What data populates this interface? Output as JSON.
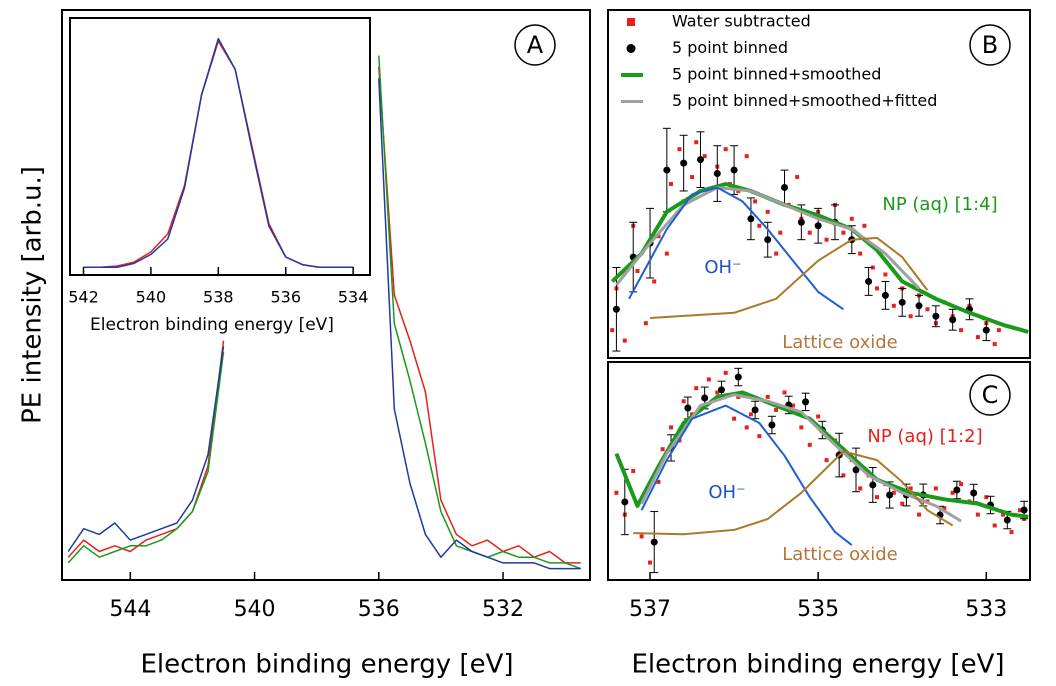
{
  "chart_data": [
    {
      "type": "line",
      "panel": "A",
      "xlabel": "Electron binding energy [eV]",
      "ylabel": "PE intensity [arb.u.]",
      "xlim": [
        546.2,
        529.2
      ],
      "xticks": [
        544,
        540,
        536,
        532
      ],
      "ylim": [
        0,
        100
      ],
      "x": [
        546,
        545.5,
        545,
        544.5,
        544,
        543.5,
        543,
        542.5,
        542,
        541.5,
        541,
        540.5,
        540,
        539.5,
        539,
        538.5,
        538,
        537.5,
        537,
        536.5,
        536,
        535.5,
        535,
        534.5,
        534,
        533.5,
        533,
        532.5,
        532,
        531.5,
        531,
        530.5,
        530,
        529.5
      ],
      "series": [
        {
          "color": "#e8201c",
          "values": [
            4,
            7,
            5,
            6,
            5,
            7,
            8,
            9,
            12,
            20,
            42,
            null,
            null,
            null,
            null,
            null,
            null,
            null,
            null,
            null,
            90,
            50,
            42,
            33,
            14,
            8,
            6,
            7,
            5,
            6,
            4,
            5,
            3,
            3
          ]
        },
        {
          "color": "#1a9a1a",
          "values": [
            3,
            6,
            4,
            5,
            6,
            6,
            7,
            9,
            12,
            19,
            40,
            null,
            null,
            null,
            null,
            null,
            null,
            null,
            null,
            null,
            92,
            45,
            35,
            24,
            12,
            6,
            5,
            4,
            5,
            4,
            4,
            3,
            3,
            2
          ]
        },
        {
          "color": "#1f3aa0",
          "values": [
            5,
            9,
            8,
            10,
            7,
            8,
            9,
            10,
            14,
            22,
            41,
            null,
            null,
            null,
            null,
            null,
            null,
            null,
            null,
            null,
            88,
            30,
            17,
            8,
            4,
            7,
            5,
            4,
            3,
            3,
            3,
            2,
            2,
            2
          ]
        }
      ]
    },
    {
      "type": "line",
      "xlabel": "Electron binding energy [eV]",
      "xlim": [
        542.4,
        533.5
      ],
      "xticks": [
        542,
        540,
        538,
        536,
        534
      ],
      "ylim": [
        0,
        100
      ],
      "x": [
        542,
        541.5,
        541,
        540.5,
        540,
        539.5,
        539,
        538.5,
        538,
        537.5,
        537,
        536.5,
        536,
        535.5,
        535,
        534.5,
        534
      ],
      "series": [
        {
          "color": "#e8201c",
          "values": [
            3,
            3,
            3.5,
            5,
            9,
            16,
            35,
            70,
            91,
            80,
            50,
            20,
            7,
            4,
            3,
            3,
            3
          ]
        },
        {
          "color": "#1f3aa0",
          "values": [
            3,
            3,
            3,
            4.5,
            8,
            14,
            34,
            70,
            92,
            80,
            49,
            19,
            7,
            4,
            3,
            3,
            3
          ]
        }
      ]
    },
    {
      "type": "scatter",
      "panel": "B",
      "xlim": [
        537.5,
        532.48
      ],
      "ylim": [
        0,
        100
      ],
      "annotations": [
        {
          "text": "NP (aq) [1:4]",
          "color": "#1a9a1a"
        },
        {
          "text": "OH⁻",
          "color": "#1f4fd0"
        },
        {
          "text": "Lattice oxide",
          "color": "#b8743a"
        }
      ],
      "series": [
        {
          "name": "Water subtracted",
          "color": "#e8201c",
          "marker": "square",
          "x": [
            537.45,
            537.4,
            537.3,
            537.2,
            537.15,
            537.05,
            536.95,
            536.9,
            536.8,
            536.75,
            536.65,
            536.6,
            536.5,
            536.45,
            536.35,
            536.3,
            536.2,
            536.1,
            536.05,
            535.95,
            535.85,
            535.75,
            535.7,
            535.6,
            535.5,
            535.45,
            535.35,
            535.25,
            535.2,
            535.1,
            535.0,
            534.9,
            534.8,
            534.7,
            534.6,
            534.5,
            534.45,
            534.35,
            534.3,
            534.2,
            534.1,
            534.0,
            533.9,
            533.8,
            533.7,
            533.6,
            533.5,
            533.4,
            533.3,
            533.2,
            533.1,
            533.0,
            532.9,
            532.85
          ],
          "values": [
            8,
            20,
            5,
            38,
            25,
            10,
            22,
            35,
            30,
            50,
            60,
            45,
            52,
            62,
            58,
            48,
            55,
            60,
            50,
            48,
            58,
            45,
            38,
            42,
            30,
            36,
            44,
            52,
            40,
            36,
            42,
            34,
            44,
            36,
            40,
            30,
            38,
            26,
            20,
            24,
            15,
            20,
            12,
            18,
            14,
            10,
            16,
            12,
            8,
            15,
            6,
            10,
            4,
            8
          ]
        },
        {
          "name": "5 point binned",
          "color": "#000000",
          "marker": "circle",
          "x": [
            537.4,
            537.2,
            537.0,
            536.8,
            536.6,
            536.4,
            536.2,
            536.0,
            535.8,
            535.6,
            535.4,
            535.2,
            535.0,
            534.8,
            534.6,
            534.4,
            534.2,
            534.0,
            533.8,
            533.6,
            533.4,
            533.2,
            533.0
          ],
          "values": [
            14,
            29,
            33,
            54,
            56,
            57,
            53,
            54,
            40,
            34,
            49,
            39,
            38,
            39,
            34,
            22,
            18,
            16,
            15,
            12,
            11,
            14,
            8
          ],
          "errors": [
            12,
            10,
            10,
            12,
            8,
            8,
            8,
            7,
            6,
            5,
            5,
            5,
            5,
            5,
            4,
            4,
            4,
            4,
            3,
            3,
            3,
            3,
            3
          ]
        },
        {
          "name": "5 point binned+smoothed",
          "color": "#1a9a1a",
          "width": 4,
          "x": [
            537.45,
            537.1,
            536.8,
            536.4,
            536.1,
            535.8,
            535.4,
            535.0,
            534.6,
            534.3,
            534.0,
            533.6,
            533.2,
            532.8,
            532.5
          ],
          "values": [
            22,
            30,
            42,
            48,
            50,
            48,
            44,
            41,
            37,
            31,
            22,
            17,
            13,
            9.5,
            7.5
          ]
        },
        {
          "name": "5 point binned+smoothed+fitted",
          "color": "#a0a0a0",
          "width": 3,
          "x": [
            537.4,
            537.0,
            536.6,
            536.2,
            535.8,
            535.4,
            535.0,
            534.6,
            534.2,
            533.8
          ],
          "values": [
            21,
            33,
            44,
            49,
            48,
            44,
            40,
            37,
            30,
            20
          ]
        },
        {
          "color": "#1f5fd0",
          "width": 2,
          "x": [
            537.25,
            536.8,
            536.5,
            536.2,
            535.9,
            535.6,
            535.3,
            535.0,
            534.7
          ],
          "values": [
            17,
            37,
            47,
            49,
            45,
            37,
            28,
            19,
            14
          ]
        },
        {
          "color": "#a87a2a",
          "width": 2,
          "x": [
            537.0,
            536.0,
            535.5,
            535.0,
            534.6,
            534.3,
            534.0,
            533.7
          ],
          "values": [
            11.5,
            13,
            17,
            28,
            34,
            34.5,
            29,
            19.5
          ]
        }
      ]
    },
    {
      "type": "scatter",
      "panel": "C",
      "xlabel": "Electron binding energy [eV]",
      "xlim": [
        537.5,
        532.48
      ],
      "xticks": [
        537,
        535,
        533
      ],
      "ylim": [
        0,
        100
      ],
      "annotations": [
        {
          "text": "NP (aq) [1:2]",
          "color": "#e8201c"
        },
        {
          "text": "OH⁻",
          "color": "#1f4fd0"
        },
        {
          "text": "Lattice oxide",
          "color": "#b8743a"
        }
      ],
      "series": [
        {
          "color": "#e8201c",
          "marker": "square",
          "x": [
            537.4,
            537.3,
            537.2,
            537.1,
            537.0,
            536.9,
            536.85,
            536.75,
            536.65,
            536.6,
            536.5,
            536.45,
            536.35,
            536.3,
            536.2,
            536.1,
            536.0,
            535.95,
            535.85,
            535.8,
            535.7,
            535.6,
            535.5,
            535.4,
            535.3,
            535.2,
            535.1,
            535.0,
            534.9,
            534.8,
            534.7,
            534.6,
            534.5,
            534.4,
            534.3,
            534.2,
            534.1,
            534.0,
            533.9,
            533.8,
            533.7,
            533.6,
            533.5,
            533.4,
            533.3,
            533.2,
            533.1,
            533.0,
            532.9,
            532.8,
            532.7,
            532.6,
            532.55
          ],
          "values": [
            40,
            30,
            50,
            20,
            8,
            45,
            60,
            70,
            64,
            82,
            76,
            88,
            80,
            92,
            86,
            95,
            74,
            84,
            70,
            76,
            66,
            84,
            78,
            86,
            80,
            70,
            62,
            75,
            55,
            64,
            48,
            55,
            42,
            48,
            38,
            44,
            40,
            35,
            42,
            30,
            36,
            42,
            33,
            40,
            44,
            36,
            30,
            38,
            25,
            30,
            22,
            32,
            28
          ]
        },
        {
          "color": "#000000",
          "marker": "circle",
          "x": [
            537.3,
            536.95,
            536.75,
            536.55,
            536.35,
            536.15,
            535.95,
            535.75,
            535.55,
            535.35,
            535.15,
            534.95,
            534.75,
            534.55,
            534.35,
            534.15,
            533.95,
            533.75,
            533.55,
            533.35,
            533.15,
            532.95,
            532.75,
            532.55
          ],
          "values": [
            35.8,
            17.4,
            60.6,
            78.9,
            83.5,
            87.2,
            93.1,
            78,
            71.1,
            80.3,
            81.7,
            68.8,
            57.3,
            50.5,
            43.6,
            39,
            39,
            39,
            29.8,
            41.3,
            39.9,
            34.4,
            27.5,
            32.1
          ],
          "errors": [
            15,
            14,
            6,
            5,
            5,
            4,
            4,
            4,
            4,
            4,
            4,
            4,
            10,
            10,
            8,
            6,
            5,
            5,
            4,
            4,
            4,
            4,
            4,
            4
          ]
        },
        {
          "color": "#1a9a1a",
          "width": 4,
          "x": [
            537.4,
            537.15,
            536.9,
            536.6,
            536.2,
            535.9,
            535.5,
            535.1,
            534.7,
            534.3,
            533.9,
            533.5,
            533.1,
            532.7,
            532.5
          ],
          "values": [
            58,
            34,
            52,
            72,
            84,
            86,
            80,
            74,
            60,
            46,
            40,
            37,
            35,
            30,
            29
          ]
        },
        {
          "color": "#a0a0a0",
          "width": 3,
          "x": [
            537.1,
            536.8,
            536.4,
            536.0,
            535.6,
            535.2,
            534.8,
            534.4,
            534.0,
            533.6,
            533.3
          ],
          "values": [
            35,
            58,
            80,
            85,
            82,
            77,
            62,
            48,
            40,
            34,
            27
          ]
        },
        {
          "color": "#1f5fd0",
          "width": 2,
          "x": [
            537.1,
            536.8,
            536.5,
            536.1,
            535.7,
            535.4,
            535.1,
            534.8,
            534.6
          ],
          "values": [
            32,
            55,
            74,
            80,
            72,
            57,
            38,
            22,
            16
          ]
        },
        {
          "color": "#a87a2a",
          "width": 2,
          "x": [
            537.2,
            536.6,
            536.0,
            535.6,
            535.2,
            534.7,
            534.3,
            534.0,
            533.7,
            533.4
          ],
          "values": [
            21.5,
            21,
            23,
            28,
            40,
            59,
            55,
            45,
            32,
            25
          ]
        }
      ]
    }
  ]
}
